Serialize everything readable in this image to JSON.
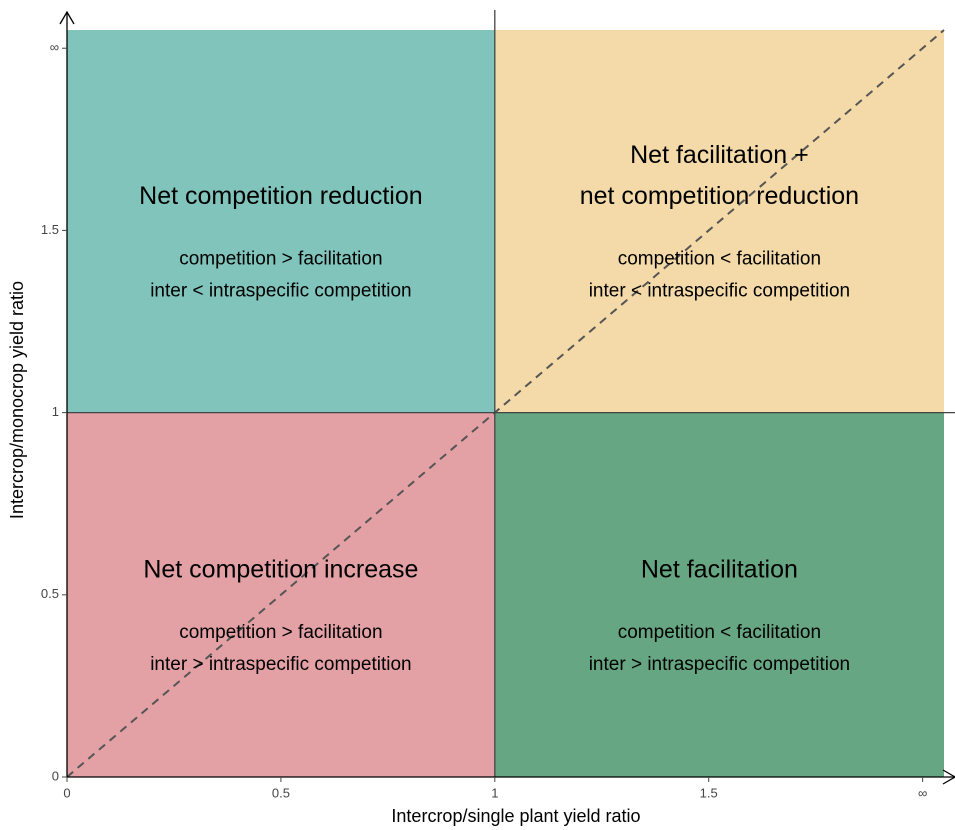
{
  "chart_data": {
    "type": "quadrant",
    "xlabel": "Intercrop/single plant yield ratio",
    "ylabel": "Intercrop/monocrop yield ratio",
    "xlim": [
      0,
      2.05
    ],
    "ylim": [
      0,
      2.05
    ],
    "xticks": [
      0,
      0.5,
      1,
      1.5,
      {
        "value": 2,
        "label": "∞"
      }
    ],
    "yticks": [
      0,
      0.5,
      1,
      1.5,
      {
        "value": 2,
        "label": "∞"
      }
    ],
    "divider": {
      "x": 1,
      "y": 1
    },
    "regions": [
      {
        "title": [
          "Net competition reduction"
        ],
        "lines": [
          "competition > facilitation",
          "inter < intraspecific competition"
        ],
        "color": "#80c4bc",
        "xrange": [
          0,
          1
        ],
        "yrange": [
          1,
          2.05
        ]
      },
      {
        "title": [
          "Net facilitation +",
          "net competition reduction"
        ],
        "lines": [
          "competition < facilitation",
          "inter < intraspecific competition"
        ],
        "color": "#f4daa8",
        "xrange": [
          1,
          2.05
        ],
        "yrange": [
          1,
          2.05
        ]
      },
      {
        "title": [
          "Net competition increase"
        ],
        "lines": [
          "competition > facilitation",
          "inter > intraspecific competition"
        ],
        "color": "#e3a1a6",
        "xrange": [
          0,
          1
        ],
        "yrange": [
          0,
          1
        ]
      },
      {
        "title": [
          "Net facilitation"
        ],
        "lines": [
          "competition < facilitation",
          "inter > intraspecific competition"
        ],
        "color": "#67a682",
        "xrange": [
          1,
          2.05
        ],
        "yrange": [
          0,
          1
        ]
      }
    ]
  }
}
